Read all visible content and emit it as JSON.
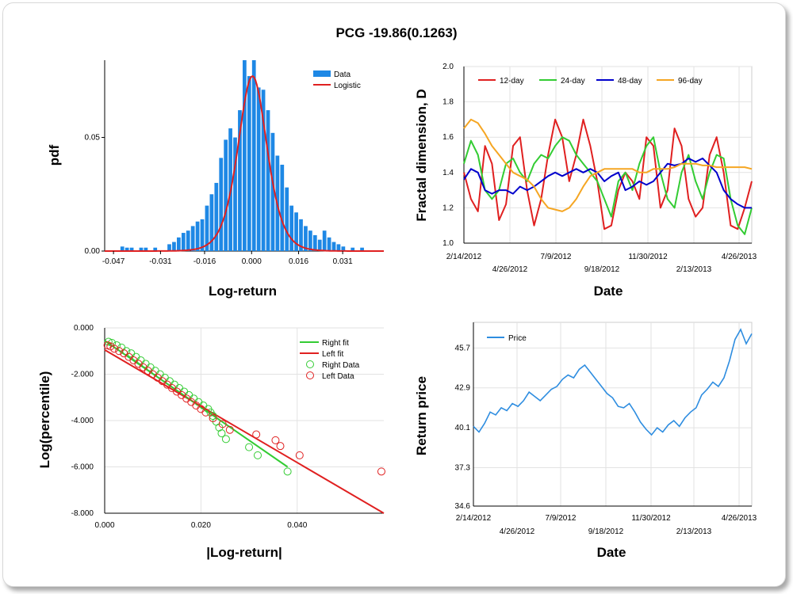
{
  "title": "PCG -19.86(0.1263)",
  "colors": {
    "blue": "#1e88e5",
    "red": "#e02020",
    "green": "#33cc33",
    "navy": "#0000cc",
    "orange": "#f5a623",
    "price": "#2e8de0"
  },
  "chart_data": [
    {
      "id": "hist",
      "type": "bar",
      "xlabel": "Log-return",
      "ylabel": "pdf",
      "xticks": [
        "-0.047",
        "-0.031",
        "-0.016",
        "0.000",
        "0.016",
        "0.031"
      ],
      "xtick_values": [
        -0.047,
        -0.031,
        -0.016,
        0.0,
        0.016,
        0.031
      ],
      "yticks": [
        "0.00",
        "0.05"
      ],
      "ytick_values": [
        0,
        0.05
      ],
      "xlim": [
        -0.05,
        0.045
      ],
      "ylim": [
        0,
        0.084
      ],
      "legend": [
        "Data",
        "Logistic"
      ],
      "bin_width": 0.0016,
      "bins": [
        [
          -0.0448,
          0.002
        ],
        [
          -0.0432,
          0.0015
        ],
        [
          -0.0416,
          0.0015
        ],
        [
          -0.0384,
          0.0015
        ],
        [
          -0.0368,
          0.0015
        ],
        [
          -0.0336,
          0.0015
        ],
        [
          -0.0288,
          0.003
        ],
        [
          -0.0272,
          0.004
        ],
        [
          -0.0256,
          0.006
        ],
        [
          -0.024,
          0.008
        ],
        [
          -0.0224,
          0.009
        ],
        [
          -0.0208,
          0.011
        ],
        [
          -0.0192,
          0.013
        ],
        [
          -0.0176,
          0.014
        ],
        [
          -0.016,
          0.02
        ],
        [
          -0.0144,
          0.025
        ],
        [
          -0.0128,
          0.03
        ],
        [
          -0.0112,
          0.041
        ],
        [
          -0.0096,
          0.049
        ],
        [
          -0.008,
          0.054
        ],
        [
          -0.0064,
          0.05
        ],
        [
          -0.0048,
          0.062
        ],
        [
          -0.0032,
          0.084
        ],
        [
          -0.0016,
          0.077
        ],
        [
          0.0,
          0.084
        ],
        [
          0.0016,
          0.072
        ],
        [
          0.0032,
          0.071
        ],
        [
          0.0048,
          0.062
        ],
        [
          0.0064,
          0.052
        ],
        [
          0.008,
          0.042
        ],
        [
          0.0096,
          0.038
        ],
        [
          0.0112,
          0.028
        ],
        [
          0.0128,
          0.02
        ],
        [
          0.0144,
          0.017
        ],
        [
          0.016,
          0.014
        ],
        [
          0.0176,
          0.011
        ],
        [
          0.0192,
          0.009
        ],
        [
          0.0208,
          0.007
        ],
        [
          0.0224,
          0.005
        ],
        [
          0.024,
          0.009
        ],
        [
          0.0256,
          0.006
        ],
        [
          0.0272,
          0.004
        ],
        [
          0.0288,
          0.003
        ],
        [
          0.0304,
          0.002
        ],
        [
          0.0336,
          0.0015
        ],
        [
          0.0368,
          0.0015
        ]
      ],
      "logistic": {
        "mu": 0.0003,
        "s": 0.0033,
        "peak": 0.077
      }
    },
    {
      "id": "fractal",
      "type": "line",
      "xlabel": "Date",
      "ylabel": "Fractal dimension, D",
      "xticks_top": [
        "2/14/2012",
        "7/9/2012",
        "11/30/2012",
        "4/26/2013"
      ],
      "xticks_bottom": [
        "4/26/2012",
        "9/18/2012",
        "2/13/2013"
      ],
      "yticks": [
        "1.0",
        "1.2",
        "1.4",
        "1.6",
        "1.8",
        "2.0"
      ],
      "ylim": [
        1.0,
        2.0
      ],
      "series": [
        {
          "name": "12-day",
          "color": "#e02020",
          "values": [
            1.4,
            1.25,
            1.18,
            1.55,
            1.45,
            1.13,
            1.22,
            1.55,
            1.6,
            1.3,
            1.1,
            1.25,
            1.5,
            1.7,
            1.6,
            1.35,
            1.5,
            1.7,
            1.55,
            1.35,
            1.08,
            1.1,
            1.3,
            1.4,
            1.35,
            1.25,
            1.6,
            1.55,
            1.2,
            1.3,
            1.65,
            1.55,
            1.25,
            1.15,
            1.2,
            1.5,
            1.6,
            1.4,
            1.1,
            1.08,
            1.2,
            1.35
          ]
        },
        {
          "name": "24-day",
          "color": "#33cc33",
          "values": [
            1.45,
            1.58,
            1.5,
            1.3,
            1.25,
            1.3,
            1.45,
            1.48,
            1.4,
            1.35,
            1.45,
            1.5,
            1.48,
            1.55,
            1.6,
            1.58,
            1.5,
            1.45,
            1.4,
            1.35,
            1.25,
            1.15,
            1.35,
            1.4,
            1.3,
            1.45,
            1.55,
            1.6,
            1.4,
            1.25,
            1.2,
            1.4,
            1.5,
            1.35,
            1.25,
            1.4,
            1.5,
            1.48,
            1.25,
            1.1,
            1.05,
            1.2
          ]
        },
        {
          "name": "48-day",
          "color": "#0000cc",
          "values": [
            1.36,
            1.42,
            1.4,
            1.3,
            1.28,
            1.3,
            1.3,
            1.28,
            1.32,
            1.3,
            1.32,
            1.35,
            1.38,
            1.4,
            1.38,
            1.4,
            1.42,
            1.4,
            1.42,
            1.4,
            1.35,
            1.38,
            1.4,
            1.3,
            1.32,
            1.35,
            1.33,
            1.35,
            1.4,
            1.45,
            1.44,
            1.45,
            1.48,
            1.46,
            1.48,
            1.44,
            1.4,
            1.3,
            1.25,
            1.22,
            1.2,
            1.2
          ]
        },
        {
          "name": "96-day",
          "color": "#f5a623",
          "values": [
            1.65,
            1.7,
            1.68,
            1.62,
            1.55,
            1.5,
            1.45,
            1.4,
            1.38,
            1.36,
            1.32,
            1.25,
            1.2,
            1.19,
            1.18,
            1.2,
            1.25,
            1.32,
            1.38,
            1.4,
            1.42,
            1.42,
            1.42,
            1.42,
            1.42,
            1.4,
            1.4,
            1.42,
            1.42,
            1.42,
            1.43,
            1.45,
            1.45,
            1.45,
            1.44,
            1.44,
            1.43,
            1.43,
            1.43,
            1.43,
            1.43,
            1.42
          ]
        }
      ]
    },
    {
      "id": "tail",
      "type": "scatter",
      "xlabel": "|Log-return|",
      "ylabel": "Log(percentile)",
      "xticks": [
        "0.000",
        "0.020",
        "0.040"
      ],
      "xtick_values": [
        0,
        0.02,
        0.04
      ],
      "yticks": [
        "0.000",
        "-2.000",
        "-4.000",
        "-6.000",
        "-8.000"
      ],
      "ytick_values": [
        0,
        -2,
        -4,
        -6,
        -8
      ],
      "xlim": [
        0,
        0.058
      ],
      "ylim": [
        -8,
        0
      ],
      "legend": [
        "Right fit",
        "Left fit",
        "Right Data",
        "Left Data"
      ],
      "right_fit": [
        [
          0,
          -0.55
        ],
        [
          0.038,
          -6.0
        ]
      ],
      "left_fit": [
        [
          0,
          -0.95
        ],
        [
          0.058,
          -8.0
        ]
      ],
      "right_data": [
        [
          0.0008,
          -0.6
        ],
        [
          0.0015,
          -0.65
        ],
        [
          0.0025,
          -0.75
        ],
        [
          0.0035,
          -0.85
        ],
        [
          0.0045,
          -1.0
        ],
        [
          0.0055,
          -1.1
        ],
        [
          0.0065,
          -1.25
        ],
        [
          0.0075,
          -1.4
        ],
        [
          0.0085,
          -1.55
        ],
        [
          0.0095,
          -1.7
        ],
        [
          0.0105,
          -1.85
        ],
        [
          0.0115,
          -2.0
        ],
        [
          0.0125,
          -2.15
        ],
        [
          0.0135,
          -2.3
        ],
        [
          0.0145,
          -2.45
        ],
        [
          0.0155,
          -2.6
        ],
        [
          0.0165,
          -2.75
        ],
        [
          0.0175,
          -2.9
        ],
        [
          0.0185,
          -3.05
        ],
        [
          0.0195,
          -3.2
        ],
        [
          0.0205,
          -3.35
        ],
        [
          0.0215,
          -3.5
        ],
        [
          0.022,
          -3.65
        ],
        [
          0.0225,
          -3.8
        ],
        [
          0.0232,
          -4.05
        ],
        [
          0.0238,
          -4.3
        ],
        [
          0.0243,
          -4.55
        ],
        [
          0.0252,
          -4.8
        ],
        [
          0.03,
          -5.15
        ],
        [
          0.0318,
          -5.5
        ],
        [
          0.038,
          -6.2
        ]
      ],
      "left_data": [
        [
          0.0006,
          -0.75
        ],
        [
          0.0012,
          -0.8
        ],
        [
          0.002,
          -0.9
        ],
        [
          0.003,
          -1.0
        ],
        [
          0.004,
          -1.1
        ],
        [
          0.005,
          -1.25
        ],
        [
          0.006,
          -1.4
        ],
        [
          0.007,
          -1.55
        ],
        [
          0.008,
          -1.7
        ],
        [
          0.009,
          -1.85
        ],
        [
          0.01,
          -2.0
        ],
        [
          0.011,
          -2.15
        ],
        [
          0.012,
          -2.3
        ],
        [
          0.013,
          -2.45
        ],
        [
          0.014,
          -2.6
        ],
        [
          0.015,
          -2.75
        ],
        [
          0.016,
          -2.9
        ],
        [
          0.017,
          -3.05
        ],
        [
          0.018,
          -3.2
        ],
        [
          0.019,
          -3.35
        ],
        [
          0.02,
          -3.5
        ],
        [
          0.021,
          -3.65
        ],
        [
          0.0225,
          -3.9
        ],
        [
          0.0245,
          -4.15
        ],
        [
          0.026,
          -4.4
        ],
        [
          0.0315,
          -4.6
        ],
        [
          0.0355,
          -4.85
        ],
        [
          0.0365,
          -5.1
        ],
        [
          0.0405,
          -5.5
        ],
        [
          0.0575,
          -6.2
        ]
      ]
    },
    {
      "id": "price",
      "type": "line",
      "xlabel": "Date",
      "ylabel": "Return price",
      "xticks_top": [
        "2/14/2012",
        "7/9/2012",
        "11/30/2012",
        "4/26/2013"
      ],
      "xticks_bottom": [
        "4/26/2012",
        "9/18/2012",
        "2/13/2013"
      ],
      "yticks": [
        "34.6",
        "37.3",
        "40.1",
        "42.9",
        "45.7"
      ],
      "ytick_values": [
        34.6,
        37.3,
        40.1,
        42.9,
        45.7
      ],
      "ylim": [
        34.6,
        47.5
      ],
      "legend": [
        "Price"
      ],
      "values": [
        40.2,
        39.8,
        40.4,
        41.2,
        41.0,
        41.5,
        41.3,
        41.8,
        41.6,
        42.0,
        42.6,
        42.3,
        42.0,
        42.4,
        42.8,
        43.0,
        43.5,
        43.8,
        43.6,
        44.2,
        44.5,
        44.0,
        43.5,
        43.0,
        42.5,
        42.2,
        41.6,
        41.5,
        41.8,
        41.2,
        40.5,
        40.0,
        39.6,
        40.1,
        39.8,
        40.3,
        40.6,
        40.2,
        40.8,
        41.2,
        41.5,
        42.4,
        42.8,
        43.3,
        43.0,
        43.6,
        44.8,
        46.3,
        47.0,
        46.0,
        46.7
      ]
    }
  ]
}
